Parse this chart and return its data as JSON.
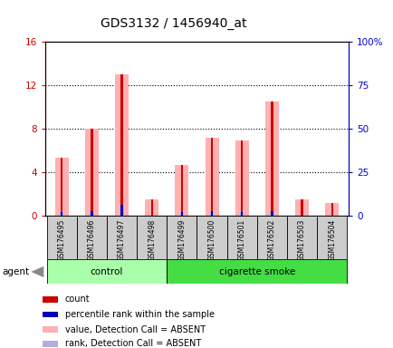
{
  "title": "GDS3132 / 1456940_at",
  "samples": [
    "GSM176495",
    "GSM176496",
    "GSM176497",
    "GSM176498",
    "GSM176499",
    "GSM176500",
    "GSM176501",
    "GSM176502",
    "GSM176503",
    "GSM176504"
  ],
  "count_values": [
    5.3,
    8.0,
    13.0,
    1.5,
    4.7,
    7.2,
    6.9,
    10.5,
    1.5,
    1.2
  ],
  "percentile_values_left": [
    0.3,
    0.4,
    1.0,
    0.0,
    0.3,
    0.4,
    0.3,
    0.4,
    0.0,
    0.0
  ],
  "absent_value_values": [
    5.3,
    8.0,
    13.0,
    1.5,
    4.7,
    7.2,
    6.9,
    10.5,
    1.5,
    1.2
  ],
  "absent_rank_values_left": [
    0.3,
    0.4,
    1.0,
    0.0,
    0.3,
    0.4,
    0.3,
    0.4,
    0.0,
    0.0
  ],
  "ylim_left": [
    0,
    16
  ],
  "ylim_right": [
    0,
    100
  ],
  "yticks_left": [
    0,
    4,
    8,
    12,
    16
  ],
  "yticks_right": [
    0,
    25,
    50,
    75,
    100
  ],
  "yticklabels_left": [
    "0",
    "4",
    "8",
    "12",
    "16"
  ],
  "yticklabels_right": [
    "0",
    "25",
    "50",
    "75",
    "100%"
  ],
  "left_tick_color": "#cc0000",
  "right_tick_color": "#0000cc",
  "color_count": "#cc0000",
  "color_percentile": "#0000bb",
  "color_absent_value": "#ffb0b0",
  "color_absent_rank": "#b0b0dd",
  "group_control_color": "#aaffaa",
  "group_smoke_color": "#44dd44",
  "control_indices": [
    0,
    1,
    2,
    3
  ],
  "smoke_indices": [
    4,
    5,
    6,
    7,
    8,
    9
  ],
  "legend_items": [
    {
      "label": "count",
      "color": "#cc0000"
    },
    {
      "label": "percentile rank within the sample",
      "color": "#0000bb"
    },
    {
      "label": "value, Detection Call = ABSENT",
      "color": "#ffb0b0"
    },
    {
      "label": "rank, Detection Call = ABSENT",
      "color": "#b0b0dd"
    }
  ]
}
